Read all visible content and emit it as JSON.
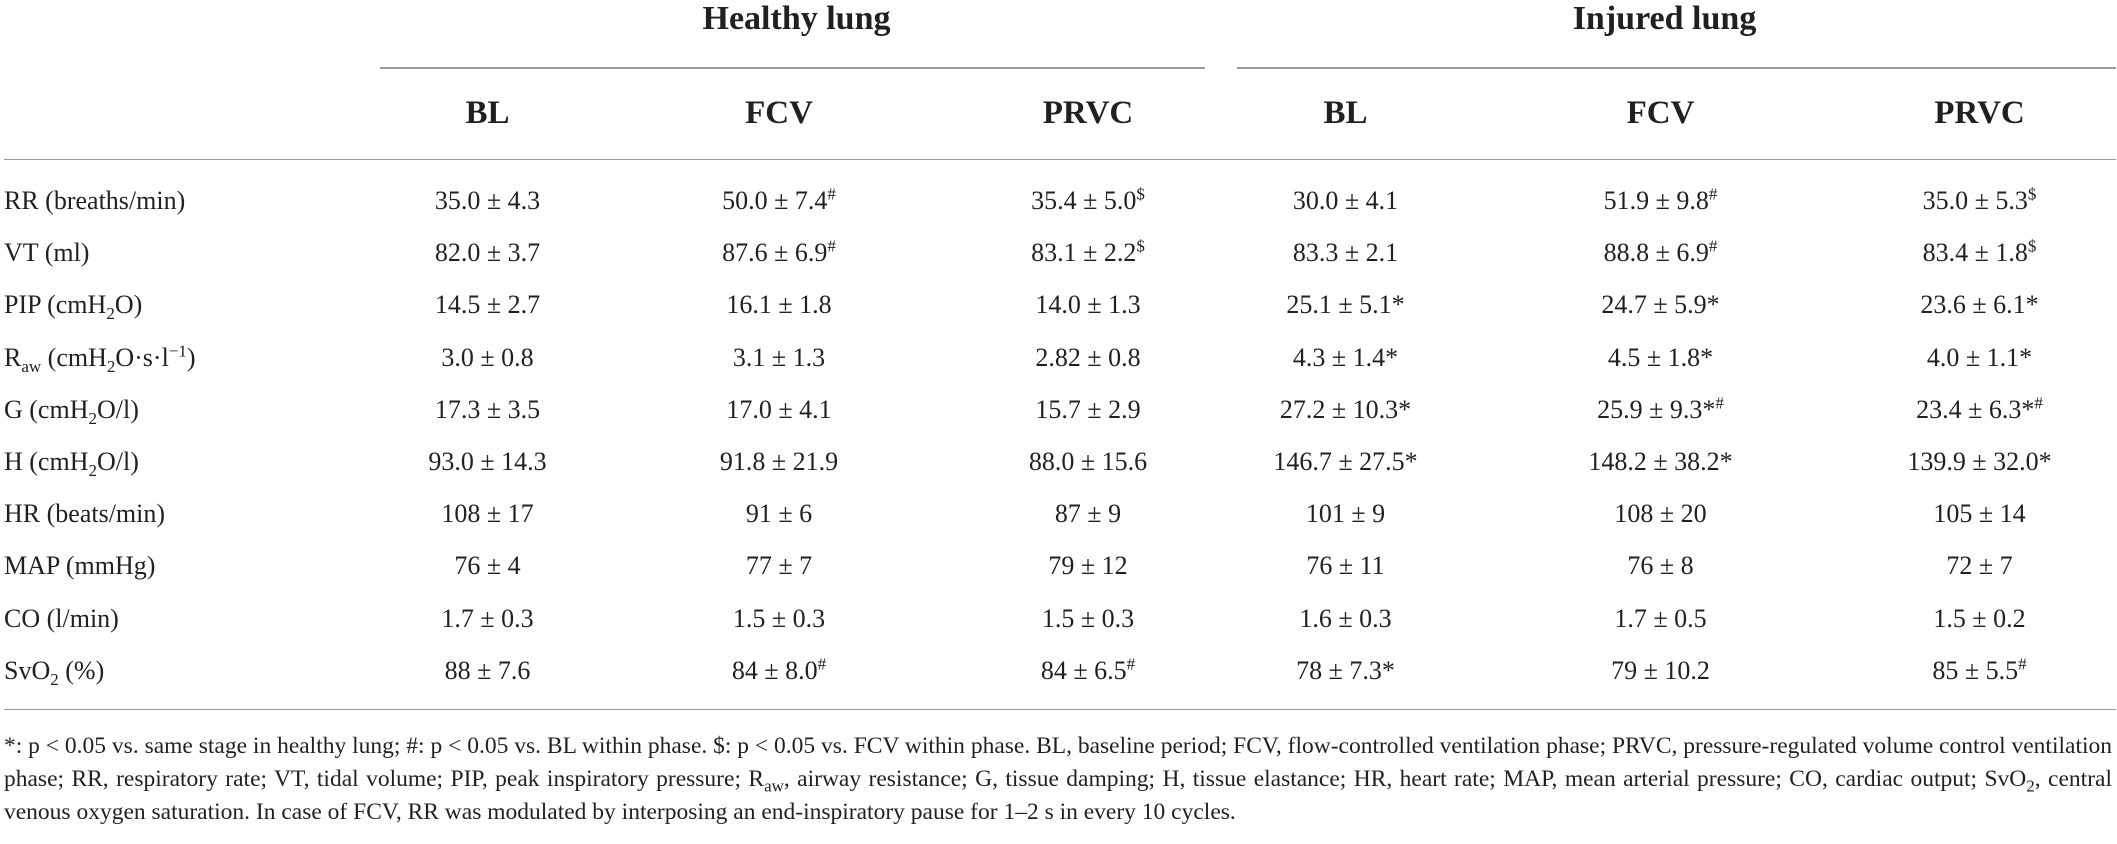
{
  "table": {
    "groups": [
      "Healthy lung",
      "Injured lung"
    ],
    "subheaders": [
      "BL",
      "FCV",
      "PRVC",
      "BL",
      "FCV",
      "PRVC"
    ],
    "rows": [
      {
        "label_main": "RR (breaths/min)",
        "label_sub": "",
        "label_suffix": "",
        "label_sup": "",
        "cells": [
          {
            "v": "35.0 ± 4.3",
            "m": ""
          },
          {
            "v": "50.0 ± 7.4",
            "m": "#"
          },
          {
            "v": "35.4 ± 5.0",
            "m": "$"
          },
          {
            "v": "30.0 ± 4.1",
            "m": ""
          },
          {
            "v": "51.9 ± 9.8",
            "m": "#"
          },
          {
            "v": "35.0 ± 5.3",
            "m": "$"
          }
        ]
      },
      {
        "label_main": "VT (ml)",
        "label_sub": "",
        "label_suffix": "",
        "label_sup": "",
        "cells": [
          {
            "v": "82.0 ± 3.7",
            "m": ""
          },
          {
            "v": "87.6 ± 6.9",
            "m": "#"
          },
          {
            "v": "83.1 ± 2.2",
            "m": "$"
          },
          {
            "v": "83.3 ± 2.1",
            "m": ""
          },
          {
            "v": "88.8 ± 6.9",
            "m": "#"
          },
          {
            "v": "83.4 ± 1.8",
            "m": "$"
          }
        ]
      },
      {
        "label_main": "PIP (cmH",
        "label_sub": "2",
        "label_suffix": "O)",
        "label_sup": "",
        "cells": [
          {
            "v": "14.5 ± 2.7",
            "m": ""
          },
          {
            "v": "16.1 ± 1.8",
            "m": ""
          },
          {
            "v": "14.0 ± 1.3",
            "m": ""
          },
          {
            "v": "25.1 ± 5.1*",
            "m": ""
          },
          {
            "v": "24.7 ± 5.9*",
            "m": ""
          },
          {
            "v": "23.6 ± 6.1*",
            "m": ""
          }
        ]
      },
      {
        "label_main": "R",
        "label_sub": "aw",
        "label_suffix": " (cmH2O·s·l",
        "label_sup": "−1",
        "label_end": ")",
        "cells": [
          {
            "v": "3.0 ± 0.8",
            "m": ""
          },
          {
            "v": "3.1 ± 1.3",
            "m": ""
          },
          {
            "v": "2.82 ± 0.8",
            "m": ""
          },
          {
            "v": "4.3 ± 1.4*",
            "m": ""
          },
          {
            "v": "4.5 ± 1.8*",
            "m": ""
          },
          {
            "v": "4.0 ± 1.1*",
            "m": ""
          }
        ]
      },
      {
        "label_main": "G (cmH",
        "label_sub": "2",
        "label_suffix": "O/l)",
        "label_sup": "",
        "cells": [
          {
            "v": "17.3 ± 3.5",
            "m": ""
          },
          {
            "v": "17.0 ± 4.1",
            "m": ""
          },
          {
            "v": "15.7 ± 2.9",
            "m": ""
          },
          {
            "v": "27.2 ± 10.3*",
            "m": ""
          },
          {
            "v": "25.9 ± 9.3*",
            "m": "#"
          },
          {
            "v": "23.4 ± 6.3*",
            "m": "#"
          }
        ]
      },
      {
        "label_main": "H (cmH",
        "label_sub": "2",
        "label_suffix": "O/l)",
        "label_sup": "",
        "cells": [
          {
            "v": "93.0 ± 14.3",
            "m": ""
          },
          {
            "v": "91.8 ± 21.9",
            "m": ""
          },
          {
            "v": "88.0 ± 15.6",
            "m": ""
          },
          {
            "v": "146.7 ± 27.5*",
            "m": ""
          },
          {
            "v": "148.2 ± 38.2*",
            "m": ""
          },
          {
            "v": "139.9 ± 32.0*",
            "m": ""
          }
        ]
      },
      {
        "label_main": "HR (beats/min)",
        "label_sub": "",
        "label_suffix": "",
        "label_sup": "",
        "cells": [
          {
            "v": "108 ± 17",
            "m": ""
          },
          {
            "v": "91 ± 6",
            "m": ""
          },
          {
            "v": "87 ± 9",
            "m": ""
          },
          {
            "v": "101 ± 9",
            "m": ""
          },
          {
            "v": "108 ± 20",
            "m": ""
          },
          {
            "v": "105 ± 14",
            "m": ""
          }
        ]
      },
      {
        "label_main": "MAP (mmHg)",
        "label_sub": "",
        "label_suffix": "",
        "label_sup": "",
        "cells": [
          {
            "v": "76 ± 4",
            "m": ""
          },
          {
            "v": "77 ± 7",
            "m": ""
          },
          {
            "v": "79 ± 12",
            "m": ""
          },
          {
            "v": "76 ± 11",
            "m": ""
          },
          {
            "v": "76 ± 8",
            "m": ""
          },
          {
            "v": "72 ± 7",
            "m": ""
          }
        ]
      },
      {
        "label_main": "CO (l/min)",
        "label_sub": "",
        "label_suffix": "",
        "label_sup": "",
        "cells": [
          {
            "v": "1.7 ± 0.3",
            "m": ""
          },
          {
            "v": "1.5 ± 0.3",
            "m": ""
          },
          {
            "v": "1.5 ± 0.3",
            "m": ""
          },
          {
            "v": "1.6 ± 0.3",
            "m": ""
          },
          {
            "v": "1.7 ± 0.5",
            "m": ""
          },
          {
            "v": "1.5 ± 0.2",
            "m": ""
          }
        ]
      },
      {
        "label_main": "SvO",
        "label_sub": "2",
        "label_suffix": " (%)",
        "label_sup": "",
        "cells": [
          {
            "v": "88 ± 7.6",
            "m": ""
          },
          {
            "v": "84 ± 8.0",
            "m": "#"
          },
          {
            "v": "84 ± 6.5",
            "m": "#"
          },
          {
            "v": "78 ± 7.3*",
            "m": ""
          },
          {
            "v": "79 ± 10.2",
            "m": ""
          },
          {
            "v": "85 ± 5.5",
            "m": "#"
          }
        ]
      }
    ]
  },
  "footnote": {
    "part1": "*: p < 0.05 vs. same stage in healthy lung; #: p < 0.05 vs. BL within phase. $: p < 0.05 vs. FCV within phase. BL, baseline period; FCV, flow-controlled ventilation phase; PRVC, pressure-regulated volume control ventilation phase; RR, respiratory rate; VT, tidal volume; PIP, peak inspiratory pressure; R",
    "sub1": "aw",
    "part2": ", airway resistance; G, tissue damping; H, tissue elastance; HR, heart rate; MAP, mean arterial pressure; CO, cardiac output; SvO",
    "sub2": "2",
    "part3": ", central venous oxygen saturation. In case of FCV, RR was modulated by interposing an end-inspiratory pause for 1–2 s in every 10 cycles."
  }
}
